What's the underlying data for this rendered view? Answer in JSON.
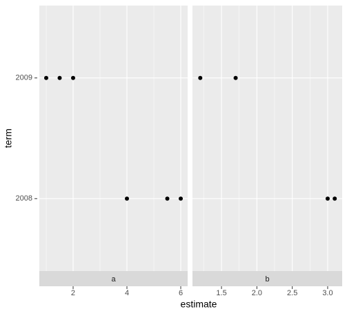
{
  "chart_data": {
    "type": "scatter",
    "x_label": "estimate",
    "y_label": "term",
    "categories": [
      "2008",
      "2009"
    ],
    "point_color": "#000000",
    "grid": true,
    "panels": [
      {
        "name": "a",
        "xlim": [
          0.744,
          6.256
        ],
        "xticks": [
          2,
          4,
          6
        ],
        "x": [
          1,
          1.5,
          2,
          4,
          5.5,
          6
        ],
        "y": [
          "2009",
          "2009",
          "2009",
          "2008",
          "2008",
          "2008"
        ]
      },
      {
        "name": "b",
        "xlim": [
          1.09,
          3.205
        ],
        "xticks": [
          1.5,
          {
            "value": 2,
            "label": "2.0"
          },
          2.5,
          {
            "value": 3,
            "label": "3.0"
          }
        ],
        "x": [
          1.2,
          1.7,
          3.0,
          3.1
        ],
        "y": [
          "2009",
          "2009",
          "2008",
          "2008"
        ]
      }
    ]
  }
}
